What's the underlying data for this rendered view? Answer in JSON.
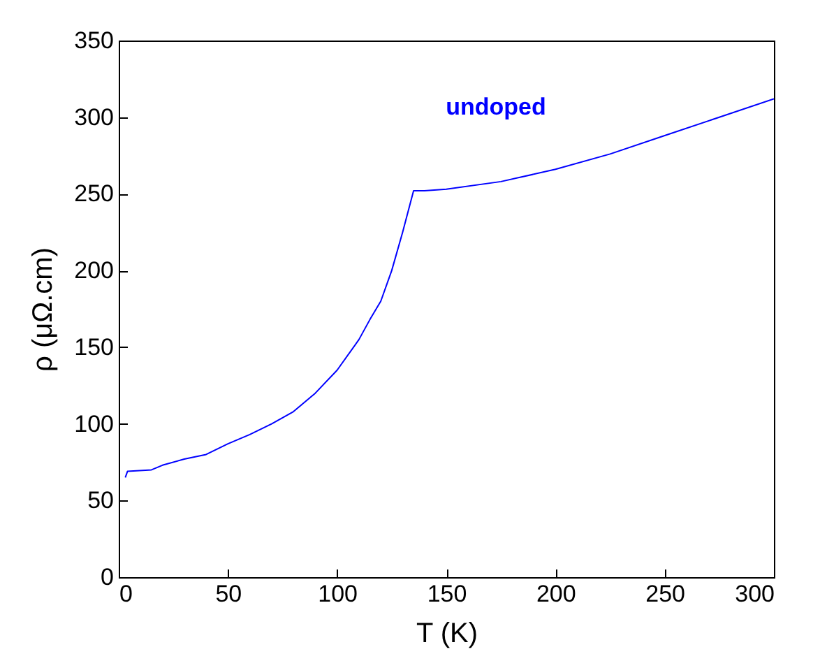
{
  "chart_data": {
    "type": "line",
    "xlabel": "T (K)",
    "ylabel": "ρ (μΩ.cm)",
    "xlim": [
      0,
      300
    ],
    "ylim": [
      0,
      350
    ],
    "xticks": [
      0,
      50,
      100,
      150,
      200,
      250,
      300
    ],
    "yticks": [
      0,
      50,
      100,
      150,
      200,
      250,
      300,
      350
    ],
    "grid": false,
    "legend": false,
    "marker": "none",
    "line_style": "solid",
    "x": [
      3,
      4,
      15,
      20,
      30,
      40,
      50,
      60,
      70,
      80,
      90,
      100,
      110,
      115,
      120,
      125,
      130,
      135,
      140,
      150,
      175,
      200,
      225,
      250,
      275,
      300
    ],
    "series": [
      {
        "name": "undoped",
        "color": "#0000ff",
        "values": [
          65,
          69,
          70,
          73,
          77,
          80,
          87,
          93,
          100,
          108,
          120,
          135,
          155,
          168,
          180,
          200,
          225,
          252,
          252,
          253,
          258,
          266,
          276,
          288,
          300,
          312
        ]
      }
    ]
  }
}
